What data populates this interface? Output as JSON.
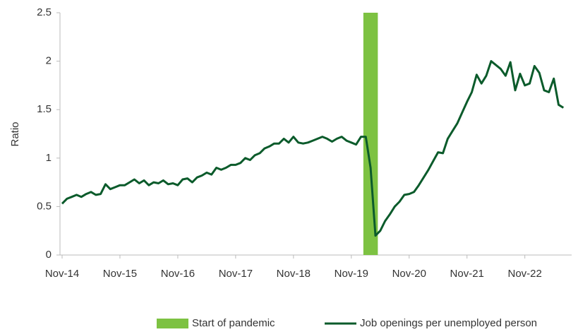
{
  "chart_data": {
    "type": "line",
    "ylabel": "Ratio",
    "categories": [
      "Nov-14",
      null,
      null,
      null,
      null,
      null,
      null,
      null,
      null,
      null,
      null,
      null,
      "Nov-15",
      null,
      null,
      null,
      null,
      null,
      null,
      null,
      null,
      null,
      null,
      null,
      "Nov-16",
      null,
      null,
      null,
      null,
      null,
      null,
      null,
      null,
      null,
      null,
      null,
      "Nov-17",
      null,
      null,
      null,
      null,
      null,
      null,
      null,
      null,
      null,
      null,
      null,
      "Nov-18",
      null,
      null,
      null,
      null,
      null,
      null,
      null,
      null,
      null,
      null,
      null,
      "Nov-19",
      null,
      null,
      null,
      null,
      null,
      null,
      null,
      null,
      null,
      null,
      null,
      "Nov-20",
      null,
      null,
      null,
      null,
      null,
      null,
      null,
      null,
      null,
      null,
      null,
      "Nov-21",
      null,
      null,
      null,
      null,
      null,
      null,
      null,
      null,
      null,
      null,
      null,
      "Nov-22",
      null,
      null,
      null,
      null,
      null,
      null,
      null,
      null
    ],
    "series": [
      {
        "name": "Start of pandemic",
        "type": "bar",
        "color": "#7dc242",
        "values": [
          null,
          null,
          null,
          null,
          null,
          null,
          null,
          null,
          null,
          null,
          null,
          null,
          null,
          null,
          null,
          null,
          null,
          null,
          null,
          null,
          null,
          null,
          null,
          null,
          null,
          null,
          null,
          null,
          null,
          null,
          null,
          null,
          null,
          null,
          null,
          null,
          null,
          null,
          null,
          null,
          null,
          null,
          null,
          null,
          null,
          null,
          null,
          null,
          null,
          null,
          null,
          null,
          null,
          null,
          null,
          null,
          null,
          null,
          null,
          null,
          null,
          null,
          null,
          null,
          2.5,
          null,
          null,
          null,
          null,
          null,
          null,
          null,
          null,
          null,
          null,
          null,
          null,
          null,
          null,
          null,
          null,
          null,
          null,
          null,
          null,
          null,
          null,
          null,
          null,
          null,
          null,
          null,
          null,
          null,
          null,
          null,
          null,
          null,
          null,
          null,
          null,
          null,
          null,
          null,
          null
        ]
      },
      {
        "name": "Job openings per unemployed person",
        "type": "line",
        "color": "#0b5b2b",
        "values": [
          0.53,
          0.58,
          0.6,
          0.62,
          0.6,
          0.63,
          0.65,
          0.62,
          0.63,
          0.73,
          0.68,
          0.7,
          0.72,
          0.72,
          0.75,
          0.78,
          0.74,
          0.77,
          0.72,
          0.75,
          0.74,
          0.77,
          0.73,
          0.74,
          0.72,
          0.78,
          0.79,
          0.75,
          0.8,
          0.82,
          0.85,
          0.83,
          0.9,
          0.88,
          0.9,
          0.93,
          0.93,
          0.95,
          1.0,
          0.98,
          1.03,
          1.05,
          1.1,
          1.12,
          1.15,
          1.15,
          1.2,
          1.16,
          1.22,
          1.16,
          1.15,
          1.16,
          1.18,
          1.2,
          1.22,
          1.2,
          1.17,
          1.2,
          1.22,
          1.18,
          1.16,
          1.14,
          1.22,
          1.22,
          0.9,
          0.2,
          0.25,
          0.35,
          0.42,
          0.5,
          0.55,
          0.62,
          0.63,
          0.65,
          0.72,
          0.8,
          0.88,
          0.97,
          1.06,
          1.05,
          1.2,
          1.28,
          1.36,
          1.47,
          1.58,
          1.68,
          1.86,
          1.77,
          1.85,
          2.0,
          1.96,
          1.92,
          1.85,
          1.99,
          1.7,
          1.87,
          1.75,
          1.77,
          1.95,
          1.88,
          1.7,
          1.68,
          1.82,
          1.55,
          1.52
        ]
      }
    ],
    "ylim": [
      0,
      2.5
    ],
    "yticks": [
      0,
      0.5,
      1,
      1.5,
      2,
      2.5
    ],
    "grid": false,
    "legend": "bottom"
  }
}
